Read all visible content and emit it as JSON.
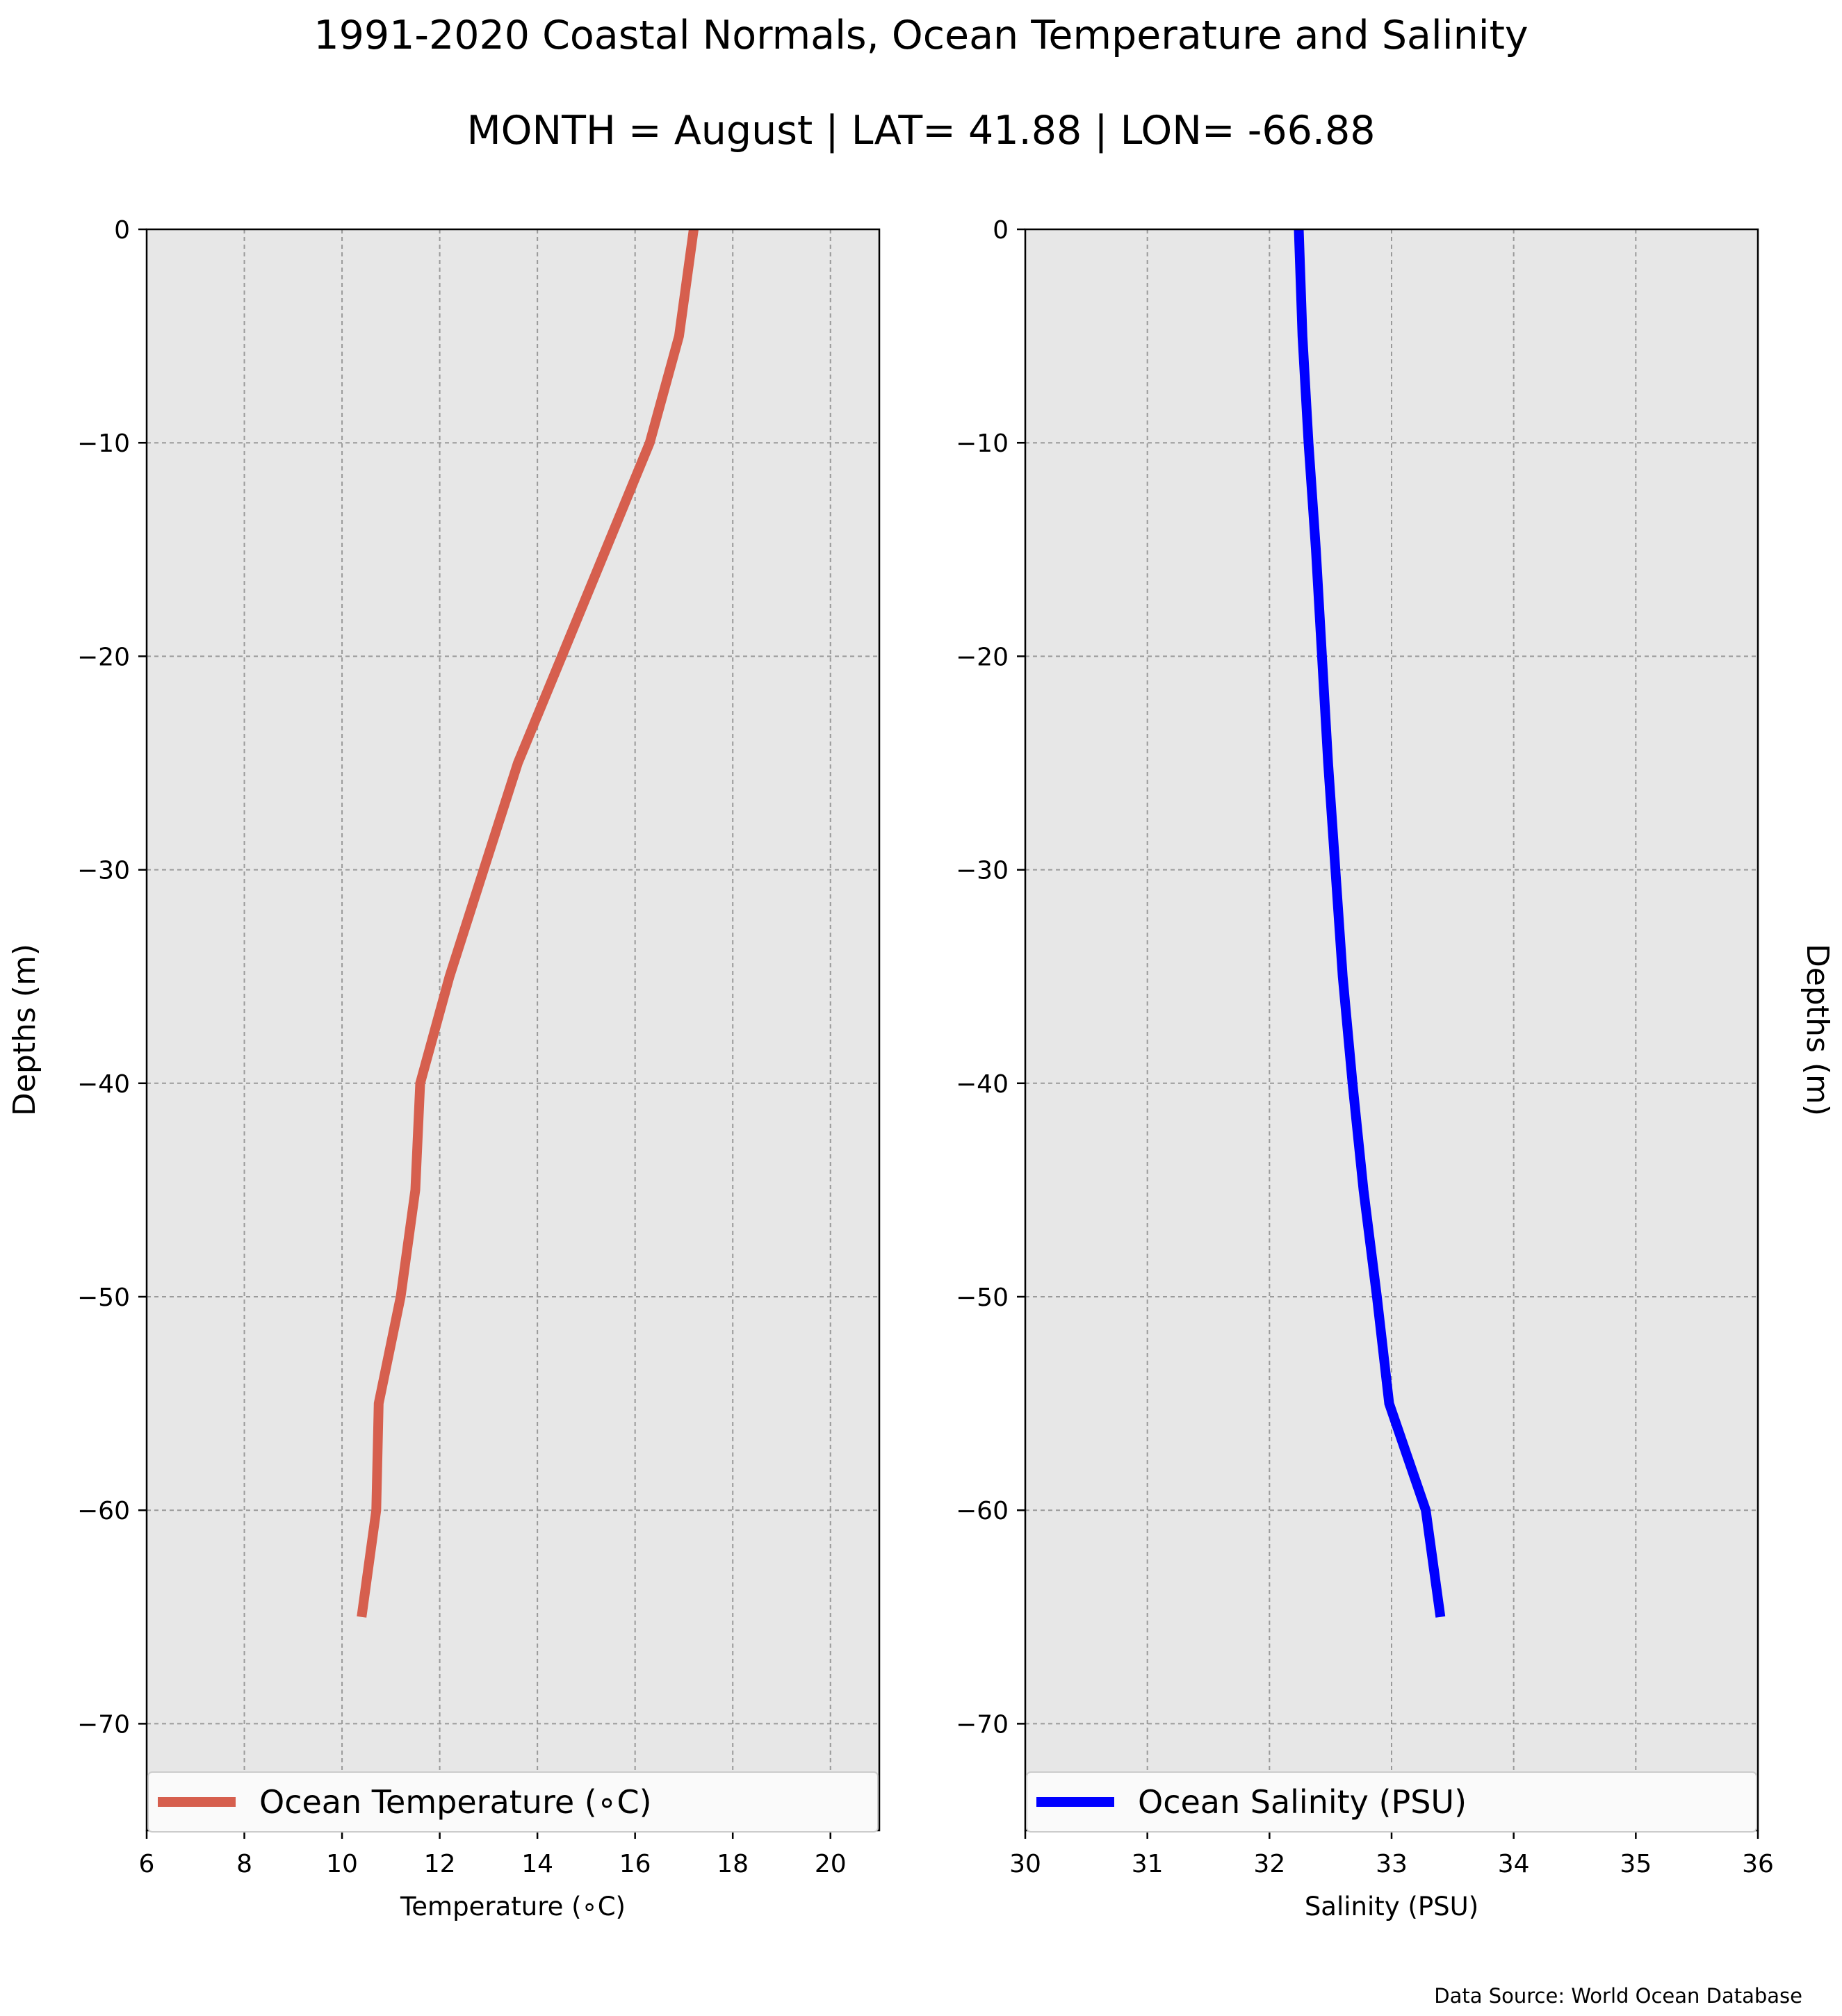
{
  "title": "1991-2020 Coastal Normals, Ocean Temperature and Salinity",
  "subtitle": "MONTH = August | LAT= 41.88 | LON= -66.88",
  "source_note": "Data Source: World Ocean Database",
  "chart_data": [
    {
      "type": "line",
      "title": "",
      "xlabel": "Temperature (∘C)",
      "ylabel": "Depths (m)",
      "ylabel_position": "left",
      "xlim": [
        6,
        21
      ],
      "ylim": [
        -75,
        0
      ],
      "xticks": [
        6,
        8,
        10,
        12,
        14,
        16,
        18,
        20
      ],
      "yticks": [
        0,
        -10,
        -20,
        -30,
        -40,
        -50,
        -60,
        -70
      ],
      "grid": true,
      "legend_position": "bottom",
      "background": "#e7e7e7",
      "series": [
        {
          "name": "Ocean Temperature (∘C)",
          "color": "#d65f4e",
          "depth": [
            0,
            -5,
            -10,
            -15,
            -20,
            -25,
            -30,
            -35,
            -40,
            -45,
            -50,
            -55,
            -60,
            -65
          ],
          "values": [
            17.2,
            16.9,
            16.3,
            15.4,
            14.5,
            13.6,
            12.9,
            12.2,
            11.6,
            11.5,
            11.2,
            10.75,
            10.7,
            10.4
          ]
        }
      ]
    },
    {
      "type": "line",
      "title": "",
      "xlabel": "Salinity (PSU)",
      "ylabel": "Depths (m)",
      "ylabel_position": "right",
      "xlim": [
        30,
        36
      ],
      "ylim": [
        -75,
        0
      ],
      "xticks": [
        30,
        31,
        32,
        33,
        34,
        35,
        36
      ],
      "yticks": [
        0,
        -10,
        -20,
        -30,
        -40,
        -50,
        -60,
        -70
      ],
      "grid": true,
      "legend_position": "bottom",
      "background": "#e7e7e7",
      "series": [
        {
          "name": "Ocean Salinity (PSU)",
          "color": "#0000ff",
          "depth": [
            0,
            -5,
            -10,
            -15,
            -20,
            -25,
            -30,
            -35,
            -40,
            -45,
            -50,
            -55,
            -60,
            -65
          ],
          "values": [
            32.24,
            32.27,
            32.32,
            32.38,
            32.43,
            32.48,
            32.54,
            32.6,
            32.68,
            32.77,
            32.88,
            32.98,
            33.28,
            33.4
          ]
        }
      ]
    }
  ]
}
